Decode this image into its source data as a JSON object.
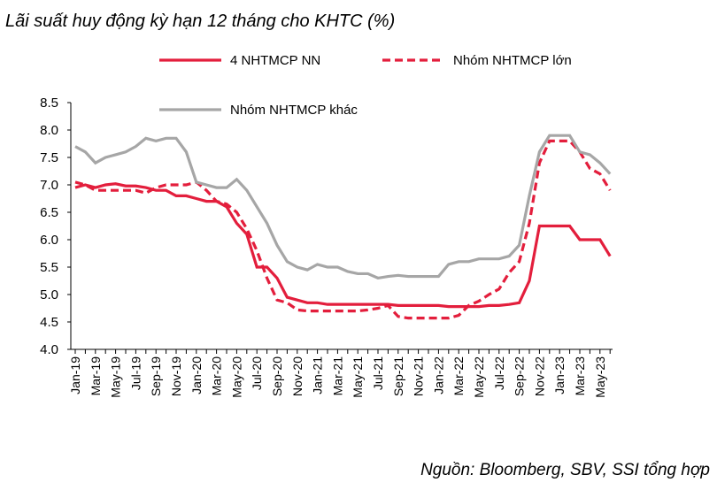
{
  "chart_data": {
    "type": "line",
    "title": "Lãi suất huy động kỳ hạn 12 tháng cho KHTC (%)",
    "source": "Nguồn:  Bloomberg, SBV, SSI tổng hợp",
    "categories": [
      "Jan-19",
      null,
      "Mar-19",
      null,
      "May-19",
      null,
      "Jul-19",
      null,
      "Sep-19",
      null,
      "Nov-19",
      null,
      "Jan-20",
      null,
      "Mar-20",
      null,
      "May-20",
      null,
      "Jul-20",
      null,
      "Sep-20",
      null,
      "Nov-20",
      null,
      "Jan-21",
      null,
      "Mar-21",
      null,
      "May-21",
      null,
      "Jul-21",
      null,
      "Sep-21",
      null,
      "Nov-21",
      null,
      "Jan-22",
      null,
      "Mar-22",
      null,
      "May-22",
      null,
      "Jul-22",
      null,
      "Sep-22",
      null,
      "Nov-22",
      null,
      "Jan-23",
      null,
      "Mar-23",
      null,
      "May-23",
      null
    ],
    "series": [
      {
        "name": "4 NHTMCP NN",
        "color": "#e31e3c",
        "dashed": false,
        "values": [
          6.95,
          7.0,
          6.95,
          7.0,
          7.02,
          6.98,
          6.98,
          6.95,
          6.9,
          6.9,
          6.8,
          6.8,
          6.75,
          6.7,
          6.7,
          6.6,
          6.3,
          6.1,
          5.5,
          5.5,
          5.3,
          4.95,
          4.9,
          4.85,
          4.85,
          4.82,
          4.82,
          4.82,
          4.82,
          4.82,
          4.82,
          4.82,
          4.8,
          4.8,
          4.8,
          4.8,
          4.8,
          4.78,
          4.78,
          4.78,
          4.78,
          4.8,
          4.8,
          4.82,
          4.85,
          5.25,
          6.25,
          6.25,
          6.25,
          6.25,
          6.0,
          6.0,
          6.0,
          5.7
        ]
      },
      {
        "name": "Nhóm NHTMCP lớn",
        "color": "#e31e3c",
        "dashed": true,
        "values": [
          7.05,
          7.0,
          6.9,
          6.9,
          6.9,
          6.9,
          6.9,
          6.85,
          6.95,
          7.0,
          7.0,
          7.0,
          7.05,
          6.9,
          6.7,
          6.65,
          6.5,
          6.2,
          5.8,
          5.3,
          4.9,
          4.85,
          4.72,
          4.7,
          4.7,
          4.7,
          4.7,
          4.7,
          4.7,
          4.72,
          4.75,
          4.8,
          4.6,
          4.57,
          4.57,
          4.57,
          4.57,
          4.57,
          4.62,
          4.8,
          4.88,
          5.0,
          5.1,
          5.4,
          5.6,
          6.3,
          7.4,
          7.8,
          7.8,
          7.8,
          7.6,
          7.3,
          7.2,
          6.9
        ]
      },
      {
        "name": "Nhóm NHTMCP khác",
        "color": "#a6a6a6",
        "dashed": false,
        "values": [
          7.7,
          7.6,
          7.4,
          7.5,
          7.55,
          7.6,
          7.7,
          7.85,
          7.8,
          7.85,
          7.85,
          7.6,
          7.05,
          7.0,
          6.95,
          6.95,
          7.1,
          6.9,
          6.6,
          6.3,
          5.9,
          5.6,
          5.5,
          5.45,
          5.55,
          5.5,
          5.5,
          5.42,
          5.38,
          5.38,
          5.3,
          5.33,
          5.35,
          5.33,
          5.33,
          5.33,
          5.33,
          5.55,
          5.6,
          5.6,
          5.65,
          5.65,
          5.65,
          5.7,
          5.9,
          6.8,
          7.6,
          7.9,
          7.9,
          7.9,
          7.6,
          7.55,
          7.4,
          7.2
        ]
      }
    ],
    "ylim": [
      4.0,
      8.5
    ],
    "yticks": [
      {
        "value": 4.0,
        "label": "4.0"
      },
      {
        "value": 4.5,
        "label": "4.5"
      },
      {
        "value": 5.0,
        "label": "5.0"
      },
      {
        "value": 5.5,
        "label": "5.5"
      },
      {
        "value": 6.0,
        "label": "6.0"
      },
      {
        "value": 6.5,
        "label": "6.5"
      },
      {
        "value": 7.0,
        "label": "7.0"
      },
      {
        "value": 7.5,
        "label": "7.5"
      },
      {
        "value": 8.0,
        "label": "8.0"
      },
      {
        "value": 8.5,
        "label": "8.5"
      }
    ],
    "grid": false
  }
}
